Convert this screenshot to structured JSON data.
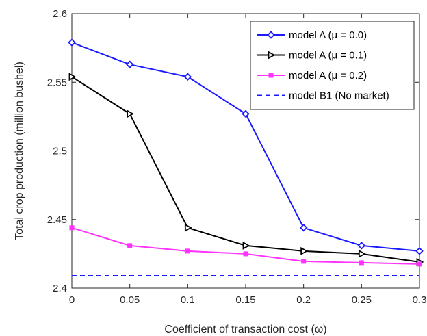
{
  "chart_data": {
    "type": "line",
    "xlabel": "Coefficient of transaction cost (ω)",
    "ylabel": "Total crop production (million bushel)",
    "x": [
      0,
      0.05,
      0.1,
      0.15,
      0.2,
      0.25,
      0.3
    ],
    "xlim": [
      0,
      0.3
    ],
    "ylim": [
      2.4,
      2.6
    ],
    "xticks": [
      "0",
      "0.05",
      "0.1",
      "0.15",
      "0.2",
      "0.25",
      "0.3"
    ],
    "yticks": [
      "2.4",
      "2.45",
      "2.5",
      "2.55",
      "2.6"
    ],
    "grid": false,
    "legend_position": "top-right",
    "series": [
      {
        "name": "model A (μ = 0.0)",
        "values": [
          2.579,
          2.563,
          2.554,
          2.527,
          2.444,
          2.431,
          2.427
        ],
        "color": "#1a1aff",
        "marker": "diamond",
        "line": "solid"
      },
      {
        "name": "model A (μ = 0.1)",
        "values": [
          2.554,
          2.527,
          2.444,
          2.431,
          2.427,
          2.425,
          2.419
        ],
        "color": "#000000",
        "marker": "triangle-right",
        "line": "solid"
      },
      {
        "name": "model A (μ = 0.2)",
        "values": [
          2.444,
          2.431,
          2.427,
          2.425,
          2.4195,
          2.4185,
          2.4175
        ],
        "color": "#ff33ff",
        "marker": "square",
        "line": "solid"
      },
      {
        "name": "model B1 (No market)",
        "values": [
          2.409,
          2.409,
          2.409,
          2.409,
          2.409,
          2.409,
          2.409
        ],
        "color": "#1a1aff",
        "marker": "none",
        "line": "dashed"
      }
    ]
  }
}
